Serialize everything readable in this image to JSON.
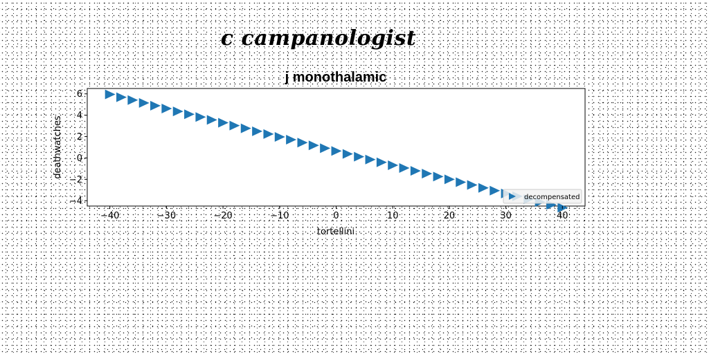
{
  "suptitle": "c campanologist",
  "chart_data": {
    "type": "scatter",
    "title": "j monothalamic",
    "xlabel": "tortellini",
    "ylabel": "deathwatches",
    "xlim": [
      -44,
      44
    ],
    "ylim": [
      -4.5,
      6.5
    ],
    "xticks": [
      -40,
      -30,
      -20,
      -10,
      0,
      10,
      20,
      30,
      40
    ],
    "xtick_labels": [
      "−40",
      "−30",
      "−20",
      "−10",
      "0",
      "10",
      "20",
      "30",
      "40"
    ],
    "yticks": [
      -4,
      -2,
      0,
      2,
      4,
      6
    ],
    "ytick_labels": [
      "−4",
      "−2",
      "0",
      "2",
      "4",
      "6"
    ],
    "grid": false,
    "legend_position": "lower-right",
    "series": [
      {
        "name": "decompensated",
        "marker": "triangle-right",
        "color": "#1f77b4",
        "x": [
          -40,
          -38,
          -36,
          -34,
          -32,
          -30,
          -28,
          -26,
          -24,
          -22,
          -20,
          -18,
          -16,
          -14,
          -12,
          -10,
          -8,
          -6,
          -4,
          -2,
          0,
          2,
          4,
          6,
          8,
          10,
          12,
          14,
          16,
          18,
          20,
          22,
          24,
          26,
          28,
          30,
          32,
          34,
          36,
          38,
          40
        ],
        "y": [
          5.95,
          5.68,
          5.42,
          5.15,
          4.89,
          4.62,
          4.36,
          4.09,
          3.83,
          3.56,
          3.3,
          3.03,
          2.77,
          2.5,
          2.24,
          1.97,
          1.71,
          1.44,
          1.18,
          0.91,
          0.65,
          0.38,
          0.12,
          -0.15,
          -0.41,
          -0.68,
          -0.94,
          -1.21,
          -1.47,
          -1.74,
          -2.0,
          -2.27,
          -2.53,
          -2.8,
          -3.06,
          -3.33,
          -3.59,
          -3.86,
          -4.12,
          -4.39,
          -4.65
        ]
      }
    ]
  }
}
